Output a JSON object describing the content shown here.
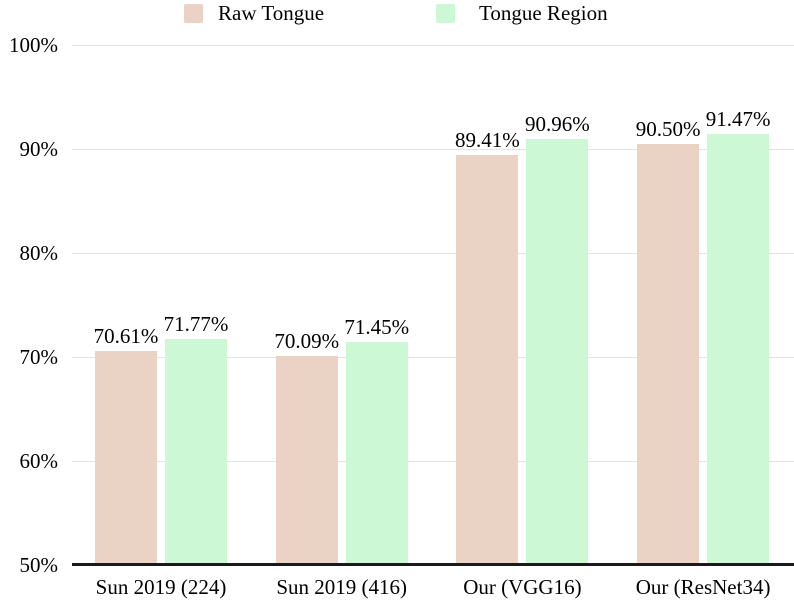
{
  "chart_data": {
    "type": "bar",
    "title": "",
    "xlabel": "",
    "ylabel": "",
    "categories": [
      "Sun 2019 (224)",
      "Sun 2019 (416)",
      "Our (VGG16)",
      "Our (ResNet34)"
    ],
    "series": [
      {
        "name": "Raw Tongue",
        "color": "#ead2c5",
        "values": [
          70.61,
          70.09,
          89.41,
          90.5
        ]
      },
      {
        "name": "Tongue Region",
        "color": "#ccf8d6",
        "values": [
          71.77,
          71.45,
          90.96,
          91.47
        ]
      }
    ],
    "value_label_format": "percent_2dp",
    "ylim": [
      50,
      100
    ],
    "yticks": [
      50,
      60,
      70,
      80,
      90,
      100
    ],
    "ytick_labels": [
      "50%",
      "60%",
      "70%",
      "80%",
      "90%",
      "100%"
    ],
    "grid": true,
    "legend_position": "top",
    "colors": {
      "gridline": "#e5e3de",
      "axis_line": "#1a1a1a",
      "text": "#000000",
      "background": "#ffffff"
    }
  }
}
